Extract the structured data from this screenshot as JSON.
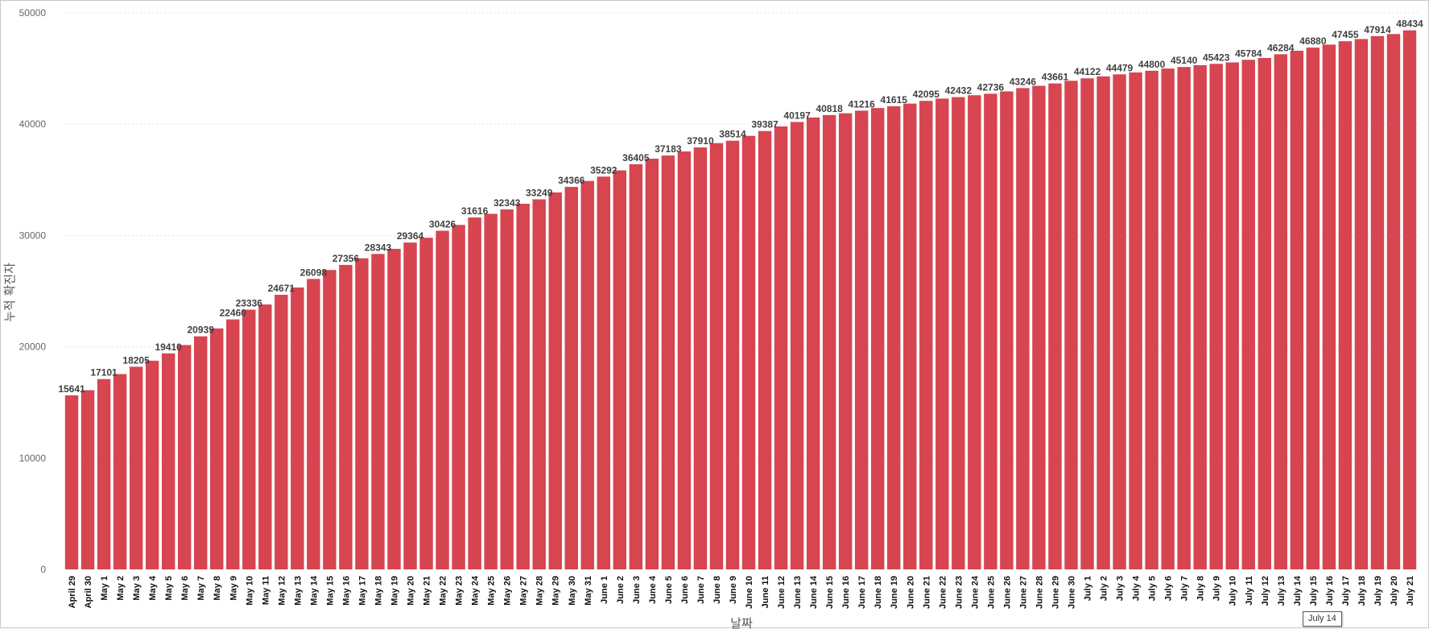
{
  "tooltip": {
    "text": "July 14"
  },
  "chart_data": {
    "type": "bar",
    "color": "#d64550",
    "xlabel": "날짜",
    "ylabel": "누적 확진자",
    "ylim": [
      0,
      50000
    ],
    "yticks": [
      0,
      10000,
      20000,
      30000,
      40000,
      50000
    ],
    "grid": true,
    "categories": [
      "April 29",
      "April 30",
      "May 1",
      "May 2",
      "May 3",
      "May 4",
      "May 5",
      "May 6",
      "May 7",
      "May 8",
      "May 9",
      "May 10",
      "May 11",
      "May 12",
      "May 13",
      "May 14",
      "May 15",
      "May 16",
      "May 17",
      "May 18",
      "May 19",
      "May 20",
      "May 21",
      "May 22",
      "May 23",
      "May 24",
      "May 25",
      "May 26",
      "May 27",
      "May 28",
      "May 29",
      "May 30",
      "May 31",
      "June 1",
      "June 2",
      "June 3",
      "June 4",
      "June 5",
      "June 6",
      "June 7",
      "June 8",
      "June 9",
      "June 10",
      "June 11",
      "June 12",
      "June 13",
      "June 14",
      "June 15",
      "June 16",
      "June 17",
      "June 18",
      "June 19",
      "June 20",
      "June 21",
      "June 22",
      "June 23",
      "June 24",
      "June 25",
      "June 26",
      "June 27",
      "June 28",
      "June 29",
      "June 30",
      "July 1",
      "July 2",
      "July 3",
      "July 4",
      "July 5",
      "July 6",
      "July 7",
      "July 8",
      "July 9",
      "July 10",
      "July 11",
      "July 12",
      "July 13",
      "July 14",
      "July 15",
      "July 16",
      "July 17",
      "July 18",
      "July 19",
      "July 20",
      "July 21"
    ],
    "values": [
      15641,
      16100,
      17101,
      17550,
      18205,
      18750,
      19410,
      20160,
      20939,
      21650,
      22460,
      23336,
      23800,
      24671,
      25330,
      26098,
      26900,
      27356,
      27950,
      28343,
      28800,
      29364,
      29800,
      30426,
      30950,
      31616,
      31950,
      32343,
      32850,
      33249,
      33870,
      34366,
      34900,
      35292,
      35850,
      36405,
      36900,
      37183,
      37550,
      37910,
      38300,
      38514,
      38950,
      39387,
      39800,
      40197,
      40600,
      40818,
      40980,
      41216,
      41450,
      41615,
      41850,
      42095,
      42300,
      42432,
      42600,
      42736,
      42950,
      43246,
      43450,
      43661,
      43900,
      44122,
      44300,
      44479,
      44650,
      44800,
      45000,
      45140,
      45300,
      45423,
      45550,
      45784,
      45950,
      46284,
      46600,
      46880,
      47150,
      47455,
      47650,
      47914,
      48100,
      48434
    ],
    "data_labels": [
      15641,
      null,
      17101,
      null,
      18205,
      null,
      19410,
      null,
      20939,
      null,
      22460,
      23336,
      null,
      24671,
      null,
      26098,
      null,
      27356,
      null,
      28343,
      null,
      29364,
      null,
      30426,
      null,
      31616,
      null,
      32343,
      null,
      33249,
      null,
      34366,
      null,
      35292,
      null,
      36405,
      null,
      37183,
      null,
      37910,
      null,
      38514,
      null,
      39387,
      null,
      40197,
      null,
      40818,
      null,
      41216,
      null,
      41615,
      null,
      42095,
      null,
      42432,
      null,
      42736,
      null,
      43246,
      null,
      43661,
      null,
      44122,
      null,
      44479,
      null,
      44800,
      null,
      45140,
      null,
      45423,
      null,
      45784,
      null,
      46284,
      null,
      46880,
      null,
      47455,
      null,
      47914,
      null,
      48434
    ]
  }
}
